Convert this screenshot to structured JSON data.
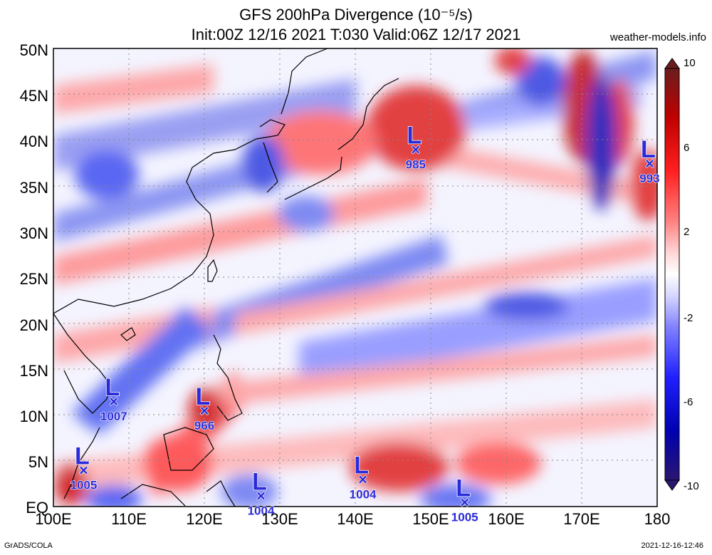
{
  "title": "GFS 200hPa Divergence (10⁻⁵/s)",
  "subtitle": "Init:00Z 12/16 2021 T:030 Valid:06Z 12/17 2021",
  "site": "weather-models.info",
  "footer_left": "GrADS/COLA",
  "footer_right": "2021-12-16-12:46",
  "lat_labels": [
    "50N",
    "45N",
    "40N",
    "35N",
    "30N",
    "25N",
    "20N",
    "15N",
    "10N",
    "5N",
    "EQ"
  ],
  "lon_labels": [
    "100E",
    "110E",
    "120E",
    "130E",
    "140E",
    "150E",
    "160E",
    "170E",
    "180"
  ],
  "colorbar": {
    "labels": [
      "10",
      "6",
      "2",
      "-2",
      "-6",
      "-10"
    ],
    "colors": [
      "#6b1d1d",
      "#c00000",
      "#ff2020",
      "#ff8080",
      "#ffd0d0",
      "#ffffff",
      "#d0d0ff",
      "#8080ff",
      "#2020ff",
      "#0000b0",
      "#2a1670"
    ]
  },
  "lows": [
    {
      "label": "L",
      "pressure": "985",
      "lon": 148.0,
      "lat": 39.0
    },
    {
      "label": "L",
      "pressure": "993",
      "lon": 179.0,
      "lat": 37.5
    },
    {
      "label": "L",
      "pressure": "1007",
      "lon": 108.0,
      "lat": 11.5
    },
    {
      "label": "L",
      "pressure": "966",
      "lon": 120.0,
      "lat": 10.5
    },
    {
      "label": "L",
      "pressure": "1005",
      "lon": 104.0,
      "lat": 4.0
    },
    {
      "label": "L",
      "pressure": "1004",
      "lon": 127.5,
      "lat": 1.2
    },
    {
      "label": "L",
      "pressure": "1004",
      "lon": 141.0,
      "lat": 3.0
    },
    {
      "label": "L",
      "pressure": "1005",
      "lon": 154.5,
      "lat": 0.5
    }
  ]
}
